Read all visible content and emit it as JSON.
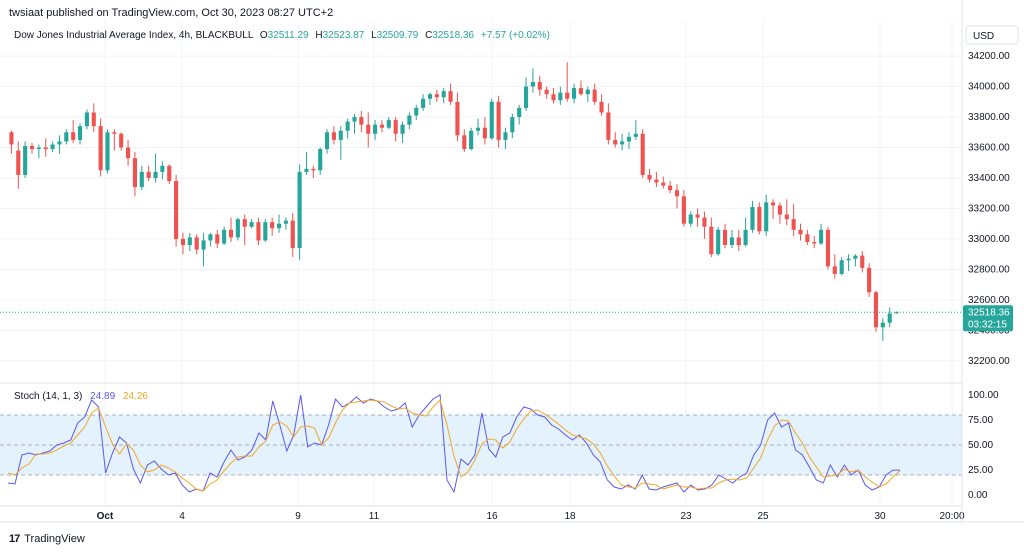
{
  "header": {
    "published": "twsiaat published on TradingView.com, Oct 30, 2023 08:27 UTC+2"
  },
  "currency_button": "USD",
  "footer": {
    "brand": "TradingView",
    "brand_icon": "tradingview-logo-icon"
  },
  "colors": {
    "up": "#26a69a",
    "down": "#ef5350",
    "stoch_k": "#5b57f0",
    "stoch_d": "#f5a623",
    "stoch_band": "#e3f2fd",
    "price_line": "#26a69a"
  },
  "chart_data": [
    {
      "type": "candlestick",
      "title": "Dow Jones Industrial Average Index, 4h, BLACKBULL",
      "ohlc_readout": {
        "o_label": "O",
        "o": "32511.29",
        "h_label": "H",
        "h": "32523.87",
        "l_label": "L",
        "l": "32509.79",
        "c_label": "C",
        "c": "32518.36",
        "change": "+7.57 (+0.02%)"
      },
      "ylim": [
        32120,
        34240
      ],
      "y_ticks": [
        "34200.00",
        "34000.00",
        "33800.00",
        "33600.00",
        "33400.00",
        "33200.00",
        "33000.00",
        "32800.00",
        "32600.00",
        "32400.00",
        "32200.00"
      ],
      "last_price": {
        "value": 32518.36,
        "label": "32518.36",
        "countdown": "03:32:15"
      },
      "x_ticks": [
        "Oct",
        "4",
        "9",
        "11",
        "16",
        "18",
        "23",
        "25",
        "30",
        "20:00"
      ],
      "candles": [
        [
          33700,
          33710,
          33560,
          33620
        ],
        [
          33580,
          33640,
          33330,
          33420
        ],
        [
          33420,
          33640,
          33400,
          33610
        ],
        [
          33610,
          33630,
          33560,
          33590
        ],
        [
          33590,
          33620,
          33530,
          33600
        ],
        [
          33600,
          33660,
          33540,
          33590
        ],
        [
          33590,
          33640,
          33570,
          33620
        ],
        [
          33620,
          33680,
          33560,
          33640
        ],
        [
          33640,
          33720,
          33620,
          33700
        ],
        [
          33700,
          33780,
          33630,
          33650
        ],
        [
          33650,
          33760,
          33620,
          33740
        ],
        [
          33740,
          33850,
          33720,
          33830
        ],
        [
          33830,
          33890,
          33700,
          33740
        ],
        [
          33740,
          33790,
          33410,
          33450
        ],
        [
          33450,
          33720,
          33430,
          33700
        ],
        [
          33700,
          33720,
          33580,
          33690
        ],
        [
          33690,
          33700,
          33580,
          33600
        ],
        [
          33600,
          33650,
          33480,
          33530
        ],
        [
          33530,
          33570,
          33280,
          33340
        ],
        [
          33340,
          33480,
          33320,
          33440
        ],
        [
          33440,
          33480,
          33380,
          33400
        ],
        [
          33400,
          33560,
          33370,
          33440
        ],
        [
          33440,
          33510,
          33390,
          33480
        ],
        [
          33480,
          33490,
          33360,
          33380
        ],
        [
          33380,
          33420,
          32950,
          33000
        ],
        [
          33000,
          33040,
          32900,
          32960
        ],
        [
          32960,
          33040,
          32920,
          33010
        ],
        [
          33010,
          33030,
          32900,
          32930
        ],
        [
          32930,
          33040,
          32820,
          32990
        ],
        [
          32990,
          33040,
          32950,
          33030
        ],
        [
          33030,
          33060,
          32940,
          32970
        ],
        [
          32970,
          33080,
          32960,
          33060
        ],
        [
          33060,
          33140,
          32980,
          33010
        ],
        [
          33010,
          33140,
          32990,
          33130
        ],
        [
          33130,
          33160,
          32960,
          33080
        ],
        [
          33080,
          33130,
          33070,
          33110
        ],
        [
          33110,
          33140,
          32960,
          32990
        ],
        [
          32990,
          33130,
          32980,
          33110
        ],
        [
          33110,
          33140,
          33020,
          33070
        ],
        [
          33070,
          33160,
          33040,
          33100
        ],
        [
          33100,
          33140,
          33060,
          33120
        ],
        [
          33120,
          33170,
          32880,
          32940
        ],
        [
          32940,
          33490,
          32860,
          33440
        ],
        [
          33440,
          33570,
          33420,
          33460
        ],
        [
          33460,
          33480,
          33400,
          33450
        ],
        [
          33450,
          33600,
          33420,
          33590
        ],
        [
          33590,
          33720,
          33560,
          33700
        ],
        [
          33700,
          33740,
          33620,
          33650
        ],
        [
          33650,
          33740,
          33520,
          33710
        ],
        [
          33710,
          33790,
          33660,
          33770
        ],
        [
          33770,
          33820,
          33690,
          33800
        ],
        [
          33800,
          33840,
          33700,
          33750
        ],
        [
          33750,
          33830,
          33600,
          33690
        ],
        [
          33690,
          33780,
          33650,
          33750
        ],
        [
          33750,
          33780,
          33700,
          33730
        ],
        [
          33730,
          33800,
          33720,
          33780
        ],
        [
          33780,
          33800,
          33640,
          33690
        ],
        [
          33690,
          33770,
          33630,
          33750
        ],
        [
          33750,
          33830,
          33720,
          33810
        ],
        [
          33810,
          33880,
          33780,
          33860
        ],
        [
          33860,
          33950,
          33840,
          33920
        ],
        [
          33920,
          33960,
          33880,
          33950
        ],
        [
          33950,
          33980,
          33900,
          33930
        ],
        [
          33930,
          33990,
          33890,
          33970
        ],
        [
          33970,
          34020,
          33880,
          33900
        ],
        [
          33900,
          33960,
          33640,
          33680
        ],
        [
          33680,
          33720,
          33570,
          33590
        ],
        [
          33590,
          33730,
          33580,
          33710
        ],
        [
          33710,
          33790,
          33680,
          33730
        ],
        [
          33730,
          33800,
          33620,
          33660
        ],
        [
          33660,
          33920,
          33650,
          33900
        ],
        [
          33900,
          33940,
          33600,
          33650
        ],
        [
          33650,
          33730,
          33590,
          33700
        ],
        [
          33700,
          33820,
          33660,
          33800
        ],
        [
          33800,
          33880,
          33750,
          33860
        ],
        [
          33860,
          34060,
          33840,
          34000
        ],
        [
          34000,
          34120,
          33960,
          34030
        ],
        [
          34030,
          34070,
          33940,
          33980
        ],
        [
          33980,
          34000,
          33920,
          33950
        ],
        [
          33950,
          33990,
          33890,
          33910
        ],
        [
          33910,
          34000,
          33880,
          33960
        ],
        [
          33960,
          34160,
          33900,
          33920
        ],
        [
          33920,
          34020,
          33890,
          33990
        ],
        [
          33990,
          34040,
          33940,
          33950
        ],
        [
          33950,
          34000,
          33900,
          33980
        ],
        [
          33980,
          34020,
          33880,
          33900
        ],
        [
          33900,
          33950,
          33810,
          33830
        ],
        [
          33830,
          33890,
          33620,
          33650
        ],
        [
          33650,
          33700,
          33600,
          33620
        ],
        [
          33620,
          33690,
          33580,
          33640
        ],
        [
          33640,
          33700,
          33590,
          33670
        ],
        [
          33670,
          33780,
          33650,
          33690
        ],
        [
          33690,
          33720,
          33400,
          33420
        ],
        [
          33420,
          33460,
          33370,
          33390
        ],
        [
          33390,
          33440,
          33340,
          33370
        ],
        [
          33370,
          33410,
          33330,
          33350
        ],
        [
          33350,
          33380,
          33300,
          33320
        ],
        [
          33320,
          33360,
          33200,
          33280
        ],
        [
          33280,
          33320,
          33080,
          33100
        ],
        [
          33100,
          33180,
          33080,
          33160
        ],
        [
          33160,
          33200,
          33080,
          33140
        ],
        [
          33140,
          33180,
          33000,
          33080
        ],
        [
          33080,
          33140,
          32880,
          32900
        ],
        [
          32900,
          33080,
          32890,
          33060
        ],
        [
          33060,
          33100,
          32940,
          32960
        ],
        [
          32960,
          33060,
          32940,
          33010
        ],
        [
          33010,
          33060,
          32920,
          32960
        ],
        [
          32960,
          33140,
          32950,
          33060
        ],
        [
          33060,
          33250,
          33040,
          33210
        ],
        [
          33210,
          33240,
          33030,
          33050
        ],
        [
          33050,
          33290,
          33020,
          33240
        ],
        [
          33240,
          33260,
          33130,
          33220
        ],
        [
          33220,
          33240,
          33100,
          33160
        ],
        [
          33160,
          33260,
          33090,
          33130
        ],
        [
          33130,
          33230,
          33020,
          33060
        ],
        [
          33060,
          33100,
          32990,
          33030
        ],
        [
          33030,
          33060,
          32960,
          32980
        ],
        [
          32980,
          33020,
          32940,
          32970
        ],
        [
          32970,
          33100,
          32960,
          33060
        ],
        [
          33060,
          33080,
          32800,
          32820
        ],
        [
          32820,
          32900,
          32740,
          32770
        ],
        [
          32770,
          32880,
          32760,
          32860
        ],
        [
          32860,
          32900,
          32790,
          32870
        ],
        [
          32870,
          32900,
          32820,
          32890
        ],
        [
          32890,
          32920,
          32780,
          32810
        ],
        [
          32810,
          32840,
          32620,
          32650
        ],
        [
          32650,
          32660,
          32390,
          32420
        ],
        [
          32420,
          32480,
          32330,
          32450
        ],
        [
          32450,
          32550,
          32420,
          32510
        ],
        [
          32511.29,
          32523.87,
          32509.79,
          32518.36
        ]
      ]
    },
    {
      "type": "line",
      "title": "Stoch (14, 1, 3)",
      "ylim": [
        -8,
        108
      ],
      "y_ticks": [
        "100.00",
        "75.00",
        "50.00",
        "25.00",
        "0.00"
      ],
      "bands": [
        20,
        50,
        80
      ],
      "series": [
        {
          "name": "24.89",
          "values": [
            12,
            11,
            40,
            42,
            40,
            42,
            44,
            50,
            52,
            55,
            72,
            78,
            95,
            88,
            22,
            42,
            58,
            52,
            26,
            12,
            30,
            34,
            26,
            20,
            22,
            10,
            3,
            6,
            4,
            22,
            18,
            33,
            45,
            35,
            38,
            45,
            62,
            55,
            94,
            70,
            44,
            60,
            100,
            48,
            52,
            50,
            70,
            96,
            88,
            92,
            98,
            92,
            96,
            94,
            88,
            84,
            86,
            92,
            68,
            80,
            88,
            96,
            100,
            15,
            3,
            36,
            30,
            40,
            82,
            46,
            38,
            58,
            62,
            78,
            88,
            86,
            80,
            78,
            70,
            66,
            60,
            55,
            60,
            52,
            40,
            33,
            15,
            8,
            6,
            10,
            6,
            20,
            6,
            5,
            8,
            10,
            12,
            3,
            10,
            5,
            6,
            10,
            20,
            16,
            12,
            18,
            22,
            40,
            50,
            75,
            82,
            68,
            72,
            45,
            40,
            28,
            15,
            12,
            30,
            18,
            30,
            20,
            25,
            10,
            5,
            8,
            20,
            24.89,
            24.89
          ]
        },
        {
          "name": "24.26",
          "values": [
            22,
            20,
            27,
            31,
            41,
            41,
            42,
            45,
            49,
            52,
            60,
            68,
            82,
            87,
            68,
            51,
            41,
            51,
            45,
            30,
            23,
            25,
            30,
            27,
            23,
            17,
            12,
            6,
            4,
            11,
            15,
            24,
            32,
            38,
            39,
            39,
            48,
            54,
            70,
            73,
            69,
            58,
            68,
            69,
            67,
            50,
            57,
            72,
            85,
            92,
            93,
            94,
            95,
            94,
            93,
            89,
            86,
            87,
            82,
            80,
            79,
            88,
            95,
            70,
            39,
            18,
            23,
            35,
            51,
            56,
            55,
            47,
            53,
            66,
            76,
            84,
            85,
            81,
            76,
            71,
            65,
            60,
            58,
            56,
            51,
            42,
            29,
            19,
            10,
            8,
            7,
            12,
            11,
            10,
            6,
            8,
            10,
            8,
            8,
            6,
            7,
            7,
            12,
            15,
            16,
            15,
            17,
            27,
            37,
            55,
            69,
            75,
            74,
            62,
            52,
            38,
            28,
            18,
            19,
            20,
            26,
            23,
            25,
            18,
            13,
            8,
            11,
            18,
            24.26
          ]
        }
      ]
    }
  ]
}
